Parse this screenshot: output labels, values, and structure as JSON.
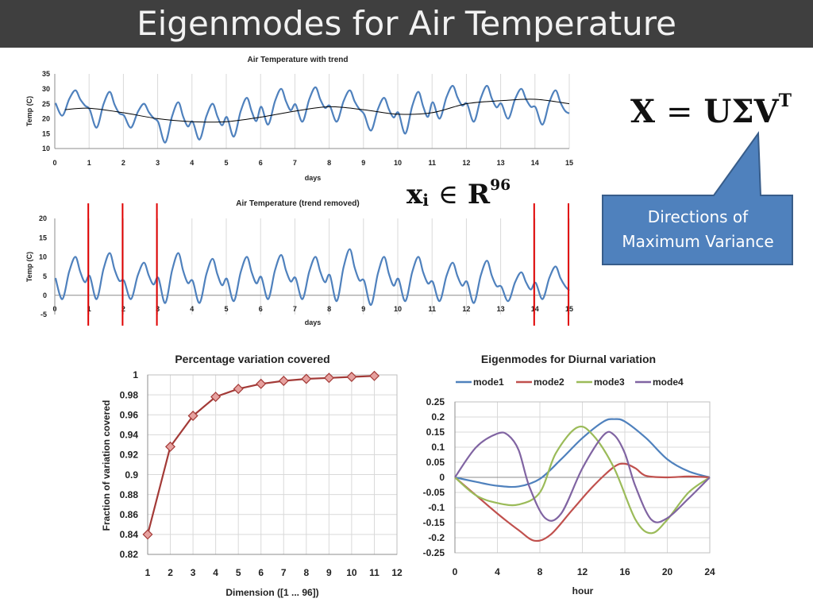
{
  "slide": {
    "title": "Eigenmodes for Air Temperature",
    "equation": {
      "lhs": "X",
      "eq": "=",
      "rhs": "UΣV",
      "sup": "T"
    },
    "vector": {
      "base": "x",
      "sub": "i",
      "in": "∈",
      "space": "R",
      "sup": "96"
    },
    "callout": {
      "line1": "Directions of",
      "line2": "Maximum Variance",
      "fill": "#4f81bd",
      "border": "#385d8a"
    }
  },
  "colors": {
    "series_blue": "#4f81bd",
    "series_red": "#c0504d",
    "series_green": "#9bbb59",
    "series_purple": "#8064a2",
    "trend_black": "#000000",
    "marker_red": "#e00000",
    "grid": "#d9d9d9"
  },
  "chart_data": [
    {
      "id": "with-trend",
      "type": "line",
      "title": "Air Temperature with trend",
      "xlabel": "days",
      "ylabel": "Temp (C)",
      "xlim": [
        0,
        15
      ],
      "ylim": [
        10,
        35
      ],
      "xticks": [
        "0",
        "1",
        "2",
        "3",
        "4",
        "5",
        "6",
        "7",
        "8",
        "9",
        "10",
        "11",
        "12",
        "13",
        "14",
        "15"
      ],
      "yticks": [
        "10",
        "15",
        "20",
        "25",
        "30",
        "35"
      ],
      "grid": "vertical",
      "daily": [
        {
          "min": 21,
          "max": 29.5
        },
        {
          "min": 17,
          "max": 29
        },
        {
          "min": 17,
          "max": 25
        },
        {
          "min": 12,
          "max": 25.5
        },
        {
          "min": 13,
          "max": 25
        },
        {
          "min": 14,
          "max": 27
        },
        {
          "min": 18,
          "max": 30
        },
        {
          "min": 19,
          "max": 30.5
        },
        {
          "min": 19,
          "max": 29.5
        },
        {
          "min": 16,
          "max": 27
        },
        {
          "min": 15,
          "max": 29
        },
        {
          "min": 20,
          "max": 31
        },
        {
          "min": 19,
          "max": 31
        },
        {
          "min": 20,
          "max": 30
        },
        {
          "min": 18,
          "max": 29.5
        }
      ],
      "trend": {
        "x": [
          0.3,
          1,
          2,
          3,
          4,
          5,
          6,
          7,
          8,
          9,
          10,
          11,
          12,
          13,
          14,
          15
        ],
        "y": [
          23,
          23.5,
          22,
          20,
          19,
          19,
          20.5,
          22.5,
          24,
          23,
          21.5,
          22,
          25,
          26,
          26.5,
          25
        ]
      }
    },
    {
      "id": "trend-removed",
      "type": "line",
      "title": "Air Temperature (trend removed)",
      "xlabel": "days",
      "ylabel": "Temp (C)",
      "xlim": [
        0,
        15
      ],
      "ylim": [
        -5,
        20
      ],
      "xticks": [
        "0",
        "1",
        "2",
        "3",
        "4",
        "5",
        "6",
        "7",
        "8",
        "9",
        "10",
        "11",
        "12",
        "13",
        "14",
        "15"
      ],
      "yticks": [
        "-5",
        "0",
        "5",
        "10",
        "15",
        "20"
      ],
      "grid": "vertical",
      "daily": [
        {
          "min": -1,
          "max": 10
        },
        {
          "min": -1,
          "max": 11
        },
        {
          "min": -1,
          "max": 8.5
        },
        {
          "min": -2,
          "max": 11
        },
        {
          "min": -2,
          "max": 9.5
        },
        {
          "min": -1.5,
          "max": 10
        },
        {
          "min": -1,
          "max": 10.5
        },
        {
          "min": -1,
          "max": 10
        },
        {
          "min": -1.5,
          "max": 12
        },
        {
          "min": -2.5,
          "max": 10
        },
        {
          "min": -1.5,
          "max": 10
        },
        {
          "min": -1.5,
          "max": 8.5
        },
        {
          "min": -2,
          "max": 9
        },
        {
          "min": -1.5,
          "max": 6
        },
        {
          "min": -1,
          "max": 7.5
        }
      ],
      "markers_x": [
        1,
        2,
        3,
        14,
        15
      ]
    },
    {
      "id": "percentage",
      "type": "line",
      "title": "Percentage variation covered",
      "xlabel": "Dimension ([1 ... 96])",
      "ylabel": "Fraction of variation covered",
      "xlim": [
        1,
        12
      ],
      "ylim": [
        0.82,
        1
      ],
      "xticks": [
        "1",
        "2",
        "3",
        "4",
        "5",
        "6",
        "7",
        "8",
        "9",
        "10",
        "11",
        "12"
      ],
      "yticks": [
        "0.82",
        "0.84",
        "0.86",
        "0.88",
        "0.9",
        "0.92",
        "0.94",
        "0.96",
        "0.98",
        "1"
      ],
      "grid": "both",
      "x": [
        1,
        2,
        3,
        4,
        5,
        6,
        7,
        8,
        9,
        10,
        11
      ],
      "y": [
        0.84,
        0.928,
        0.959,
        0.978,
        0.986,
        0.991,
        0.994,
        0.996,
        0.997,
        0.998,
        0.999
      ]
    },
    {
      "id": "eigenmodes",
      "type": "line",
      "title": "Eigenmodes for Diurnal variation",
      "xlabel": "hour",
      "ylabel": "",
      "xlim": [
        0,
        24
      ],
      "ylim": [
        -0.25,
        0.25
      ],
      "xticks": [
        "0",
        "4",
        "8",
        "12",
        "16",
        "20",
        "24"
      ],
      "yticks": [
        "-0.25",
        "-0.2",
        "-0.15",
        "-0.1",
        "-0.05",
        "0",
        "0.05",
        "0.1",
        "0.15",
        "0.2",
        "0.25"
      ],
      "grid": "both",
      "legend": "top",
      "series": [
        {
          "name": "mode1",
          "x": [
            0,
            2,
            4,
            6,
            8,
            10,
            12,
            14,
            15,
            16,
            18,
            20,
            22,
            24
          ],
          "y": [
            0,
            -0.015,
            -0.028,
            -0.03,
            -0.005,
            0.06,
            0.13,
            0.185,
            0.193,
            0.185,
            0.13,
            0.06,
            0.02,
            0
          ]
        },
        {
          "name": "mode2",
          "x": [
            0,
            2,
            4,
            6,
            7.5,
            9,
            11,
            13,
            15,
            16,
            17,
            18,
            20,
            22,
            24
          ],
          "y": [
            0,
            -0.06,
            -0.12,
            -0.175,
            -0.21,
            -0.19,
            -0.11,
            -0.03,
            0.035,
            0.045,
            0.03,
            0.005,
            0,
            0.003,
            0
          ]
        },
        {
          "name": "mode3",
          "x": [
            0,
            2,
            4,
            6,
            8,
            9.5,
            11.5,
            13,
            15,
            17,
            18.5,
            20,
            22,
            24
          ],
          "y": [
            0,
            -0.06,
            -0.085,
            -0.09,
            -0.05,
            0.08,
            0.165,
            0.14,
            0.03,
            -0.14,
            -0.185,
            -0.14,
            -0.05,
            0
          ]
        },
        {
          "name": "mode4",
          "x": [
            0,
            2,
            4,
            5,
            6,
            7,
            8.5,
            10,
            12,
            14,
            15,
            16,
            17,
            18.5,
            20,
            22,
            24
          ],
          "y": [
            0,
            0.1,
            0.145,
            0.14,
            0.09,
            -0.03,
            -0.135,
            -0.12,
            0.03,
            0.14,
            0.14,
            0.08,
            -0.03,
            -0.14,
            -0.135,
            -0.07,
            0
          ]
        }
      ]
    }
  ]
}
